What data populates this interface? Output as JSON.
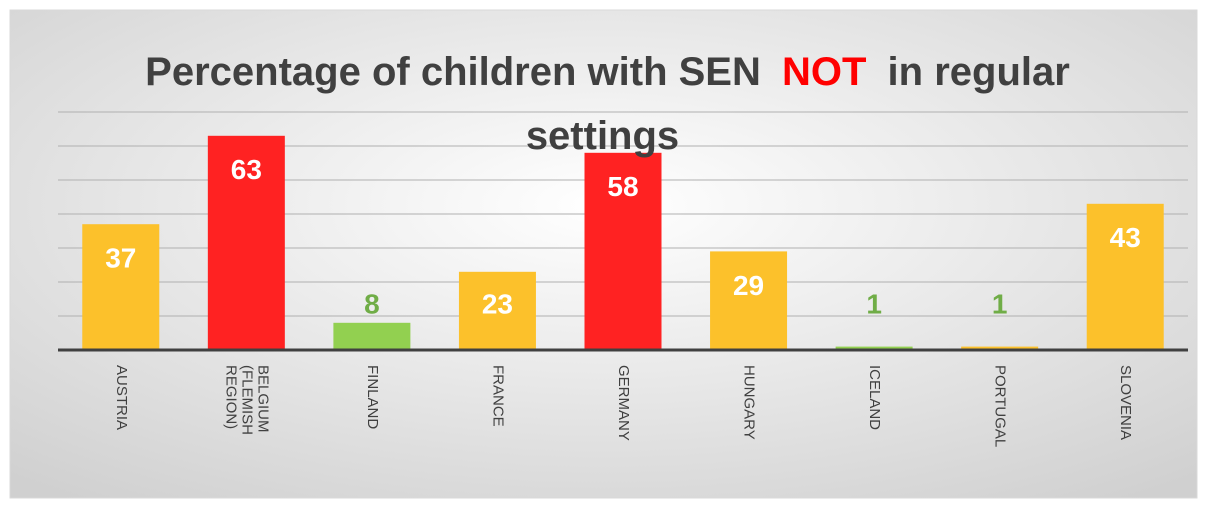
{
  "chart_data": {
    "type": "bar",
    "title_segments": [
      {
        "text": "Percentage of children with SEN",
        "color": "#404040"
      },
      {
        "text": "NOT",
        "color": "#ff0000"
      },
      {
        "text": "in regular settings",
        "color": "#404040"
      }
    ],
    "categories": [
      "AUSTRIA",
      "BELGIUM (FLEMISH REGION)",
      "FINLAND",
      "FRANCE",
      "GERMANY",
      "HUNGARY",
      "ICELAND",
      "PORTUGAL",
      "SLOVENIA"
    ],
    "values": [
      37,
      63,
      8,
      23,
      58,
      29,
      1,
      1,
      43
    ],
    "colors": [
      "#fcc12b",
      "#ff2222",
      "#92d050",
      "#fcc12b",
      "#ff2222",
      "#fcc12b",
      "#92d050",
      "#fcc12b",
      "#fcc12b"
    ],
    "label_colors": [
      "#ffffff",
      "#ffffff",
      "#70ad47",
      "#ffffff",
      "#ffffff",
      "#ffffff",
      "#70ad47",
      "#70ad47",
      "#ffffff"
    ],
    "ylim": [
      0,
      70
    ],
    "yticks": [
      0,
      10,
      20,
      30,
      40,
      50,
      60,
      70
    ],
    "grid": true
  }
}
